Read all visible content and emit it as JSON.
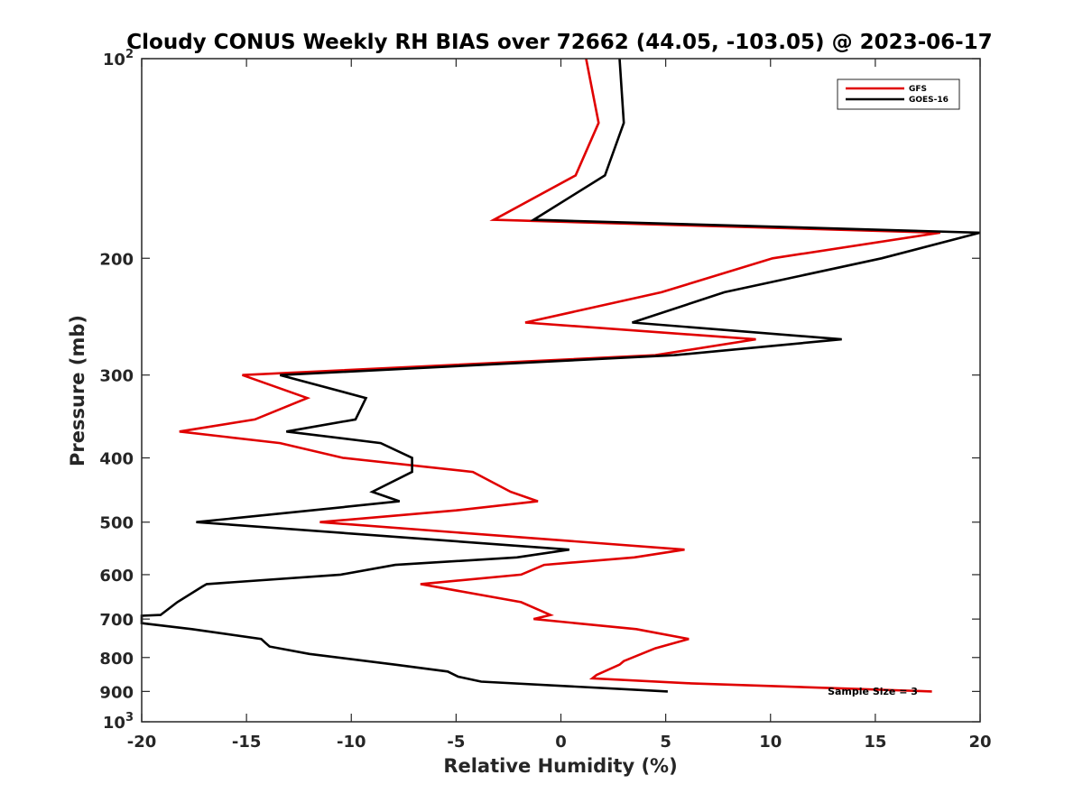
{
  "chart_data": {
    "type": "line",
    "title": "Cloudy CONUS Weekly RH BIAS over 72662 (44.05, -103.05) @ 2023-06-17",
    "xlabel": "Relative Humidity (%)",
    "ylabel": "Pressure (mb)",
    "xlim": [
      -20,
      20
    ],
    "ylim": [
      100,
      1000
    ],
    "yscale": "log",
    "y_reversed": true,
    "xticks": [
      -20,
      -15,
      -10,
      -5,
      0,
      5,
      10,
      15,
      20
    ],
    "xtick_labels": [
      "-20",
      "-15",
      "-10",
      "-5",
      "0",
      "5",
      "10",
      "15",
      "20"
    ],
    "yticks": [
      {
        "value": 100,
        "base": "10",
        "exp": "2"
      },
      {
        "value": 200,
        "label": "200"
      },
      {
        "value": 300,
        "label": "300"
      },
      {
        "value": 400,
        "label": "400"
      },
      {
        "value": 500,
        "label": "500"
      },
      {
        "value": 600,
        "label": "600"
      },
      {
        "value": 700,
        "label": "700"
      },
      {
        "value": 800,
        "label": "800"
      },
      {
        "value": 900,
        "label": "900"
      },
      {
        "value": 1000,
        "base": "10",
        "exp": "3"
      }
    ],
    "grid": false,
    "legend_position": "top-right",
    "annotation": "Sample Size = 3",
    "series": [
      {
        "name": "GFS",
        "color": "#e00000",
        "points": [
          {
            "x": 1.2,
            "y": 100
          },
          {
            "x": 1.8,
            "y": 125
          },
          {
            "x": 0.7,
            "y": 150
          },
          {
            "x": -3.2,
            "y": 175
          },
          {
            "x": 18.1,
            "y": 183
          },
          {
            "x": 10.1,
            "y": 200
          },
          {
            "x": 4.8,
            "y": 225
          },
          {
            "x": -1.7,
            "y": 250
          },
          {
            "x": 9.3,
            "y": 265
          },
          {
            "x": 4.5,
            "y": 280
          },
          {
            "x": -15.2,
            "y": 300
          },
          {
            "x": -12.1,
            "y": 325
          },
          {
            "x": -14.6,
            "y": 350
          },
          {
            "x": -18.2,
            "y": 365
          },
          {
            "x": -13.4,
            "y": 380
          },
          {
            "x": -10.4,
            "y": 400
          },
          {
            "x": -4.2,
            "y": 420
          },
          {
            "x": -2.4,
            "y": 450
          },
          {
            "x": -1.1,
            "y": 465
          },
          {
            "x": -5.0,
            "y": 480
          },
          {
            "x": -11.5,
            "y": 500
          },
          {
            "x": 5.9,
            "y": 550
          },
          {
            "x": 3.5,
            "y": 565
          },
          {
            "x": -0.8,
            "y": 580
          },
          {
            "x": -1.9,
            "y": 600
          },
          {
            "x": -6.7,
            "y": 620
          },
          {
            "x": -1.9,
            "y": 660
          },
          {
            "x": -0.5,
            "y": 690
          },
          {
            "x": -1.3,
            "y": 700
          },
          {
            "x": 3.6,
            "y": 725
          },
          {
            "x": 6.1,
            "y": 750
          },
          {
            "x": 4.5,
            "y": 775
          },
          {
            "x": 3.0,
            "y": 810
          },
          {
            "x": 2.8,
            "y": 820
          },
          {
            "x": 1.7,
            "y": 850
          },
          {
            "x": 1.5,
            "y": 860
          },
          {
            "x": 6.2,
            "y": 875
          },
          {
            "x": 17.7,
            "y": 900
          }
        ]
      },
      {
        "name": "GOES-16",
        "color": "#000000",
        "points": [
          {
            "x": 2.8,
            "y": 100
          },
          {
            "x": 3.0,
            "y": 125
          },
          {
            "x": 2.1,
            "y": 150
          },
          {
            "x": -1.3,
            "y": 175
          },
          {
            "x": 20.0,
            "y": 183
          },
          {
            "x": 15.3,
            "y": 200
          },
          {
            "x": 7.8,
            "y": 225
          },
          {
            "x": 3.4,
            "y": 250
          },
          {
            "x": 13.4,
            "y": 265
          },
          {
            "x": 5.4,
            "y": 280
          },
          {
            "x": -13.4,
            "y": 300
          },
          {
            "x": -9.3,
            "y": 325
          },
          {
            "x": -9.8,
            "y": 350
          },
          {
            "x": -13.1,
            "y": 365
          },
          {
            "x": -8.6,
            "y": 380
          },
          {
            "x": -7.1,
            "y": 400
          },
          {
            "x": -7.1,
            "y": 420
          },
          {
            "x": -9.0,
            "y": 450
          },
          {
            "x": -7.7,
            "y": 465
          },
          {
            "x": -11.9,
            "y": 480
          },
          {
            "x": -17.4,
            "y": 500
          },
          {
            "x": 0.4,
            "y": 550
          },
          {
            "x": -2.1,
            "y": 565
          },
          {
            "x": -7.9,
            "y": 580
          },
          {
            "x": -10.5,
            "y": 600
          },
          {
            "x": -16.9,
            "y": 620
          },
          {
            "x": -17.1,
            "y": 625
          },
          {
            "x": -18.3,
            "y": 660
          },
          {
            "x": -19.1,
            "y": 690
          },
          {
            "x": -20.0,
            "y": 692
          },
          {
            "x": -20.0,
            "y": 710
          },
          {
            "x": -17.6,
            "y": 725
          },
          {
            "x": -14.3,
            "y": 750
          },
          {
            "x": -14.1,
            "y": 760
          },
          {
            "x": -13.9,
            "y": 770
          },
          {
            "x": -12.0,
            "y": 790
          },
          {
            "x": -7.9,
            "y": 820
          },
          {
            "x": -5.4,
            "y": 840
          },
          {
            "x": -4.9,
            "y": 855
          },
          {
            "x": -3.8,
            "y": 870
          },
          {
            "x": 5.1,
            "y": 900
          }
        ]
      }
    ]
  }
}
